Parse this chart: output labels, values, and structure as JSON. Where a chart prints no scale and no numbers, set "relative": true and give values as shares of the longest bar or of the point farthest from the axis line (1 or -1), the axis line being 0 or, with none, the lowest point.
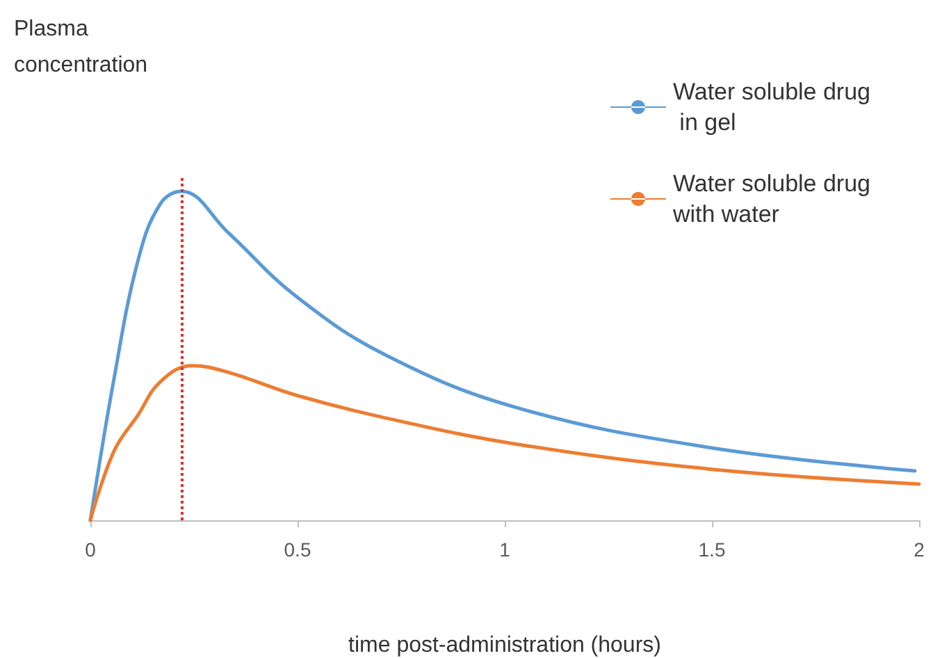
{
  "chart_data": {
    "type": "line",
    "relative": true,
    "xlabel": "time post-administration (hours)",
    "annotations": [
      "Plasma concentration"
    ],
    "xlim": [
      0,
      2
    ],
    "xticks": [
      0,
      0.5,
      1,
      1.5,
      2
    ],
    "grid": false,
    "legend": "top right",
    "marker": "none",
    "line_style": "solid",
    "series": [
      {
        "name": "Water soluble drug\n in gel",
        "color": "#5b9bd5",
        "x": [
          0,
          0.057,
          0.115,
          0.168,
          0.22,
          0.332,
          0.497,
          0.716,
          1.035,
          1.5,
          1.99
        ],
        "values": [
          0,
          0.43,
          0.79,
          0.96,
          1,
          0.875,
          0.68,
          0.5,
          0.34,
          0.22,
          0.15
        ]
      },
      {
        "name": "Water soluble drug\nwith water",
        "color": "#ed7d31",
        "x": [
          0,
          0.057,
          0.115,
          0.168,
          0.245,
          0.332,
          0.497,
          0.716,
          1.035,
          1.5,
          2
        ],
        "values": [
          0,
          0.21,
          0.32,
          0.42,
          0.47,
          0.45,
          0.38,
          0.31,
          0.23,
          0.155,
          0.11
        ]
      }
    ],
    "ref_lines": [
      {
        "axis": "x",
        "value": 0.22,
        "label": null,
        "color": "#e03030",
        "line_style": "dotted"
      }
    ]
  }
}
